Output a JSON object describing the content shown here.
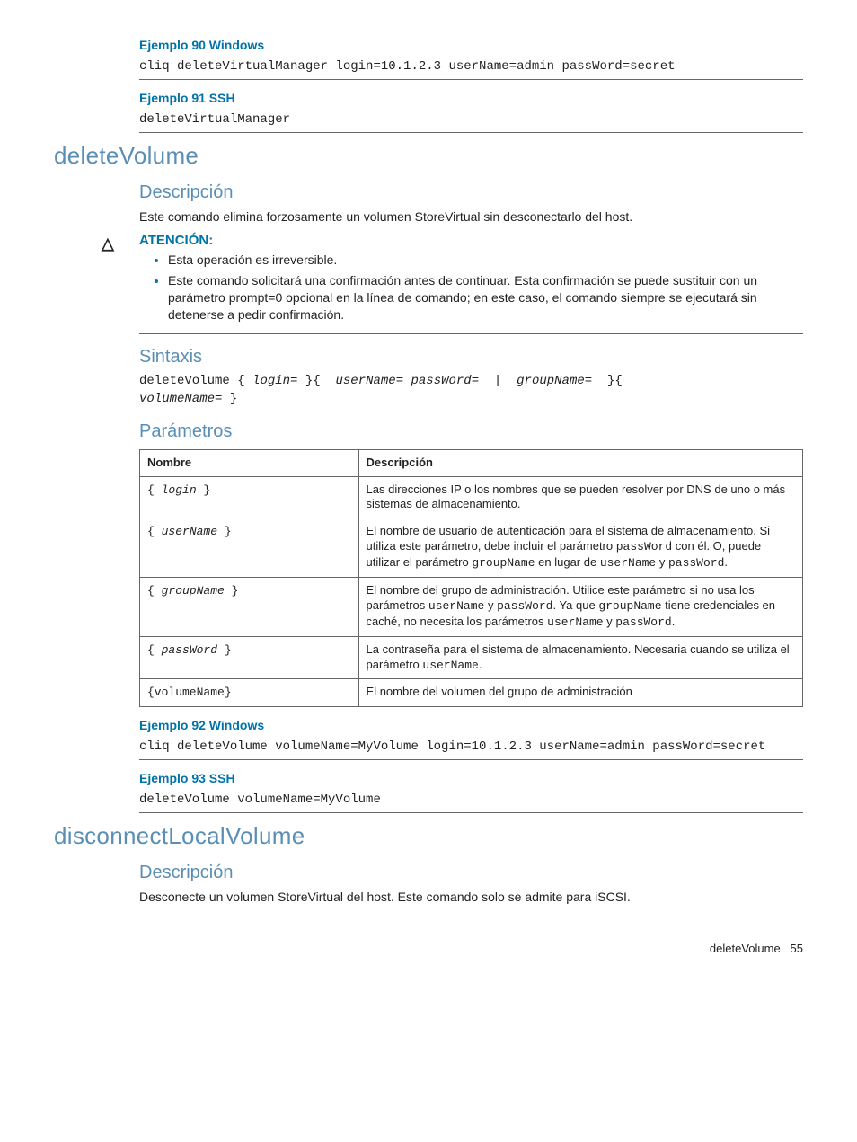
{
  "colors": {
    "heading": "#5a8fb5",
    "link_bold": "#0073a8",
    "text": "#222222",
    "rule": "#666666",
    "background": "#ffffff"
  },
  "typography": {
    "body_font": "Arial, Helvetica, sans-serif",
    "code_font": "Courier New, monospace",
    "body_size_pt": 10.5,
    "h1_size_pt": 20,
    "h2_size_pt": 15,
    "example_size_pt": 10.5
  },
  "ex90": {
    "title": "Ejemplo 90 Windows",
    "code": "cliq deleteVirtualManager login=10.1.2.3 userName=admin passWord=secret"
  },
  "ex91": {
    "title": "Ejemplo 91 SSH",
    "code": "deleteVirtualManager"
  },
  "deleteVolume": {
    "title": "deleteVolume",
    "descripcion": {
      "heading": "Descripción",
      "text": "Este comando elimina forzosamente un volumen StoreVirtual sin desconectarlo del host."
    },
    "atencion": {
      "heading": "ATENCIÓN:",
      "items": [
        "Esta operación es irreversible.",
        "Este comando solicitará una confirmación antes de continuar. Esta confirmación se puede sustituir con un parámetro prompt=0 opcional en la línea de comando; en este caso, el comando siempre se ejecutará sin detenerse a pedir confirmación."
      ]
    },
    "sintaxis": {
      "heading": "Sintaxis",
      "template_parts": {
        "cmd": "deleteVolume",
        "p1": "login=",
        "p2": "userName= passWord=",
        "p3": "groupName=",
        "p4": "volumeName="
      }
    },
    "parametros": {
      "heading": "Parámetros",
      "columns": [
        "Nombre",
        "Descripción"
      ],
      "rows": [
        {
          "name": "login",
          "name_style": "brace_italic",
          "desc_plain": "Las direcciones IP o los nombres que se pueden resolver por DNS de uno o más sistemas de almacenamiento."
        },
        {
          "name": "userName",
          "name_style": "brace_italic",
          "desc_html": "El nombre de usuario de autenticación para el sistema de almacenamiento. Si utiliza este parámetro, debe incluir el parámetro <span class=\"inlinec\">passWord</span> con él. O, puede utilizar el parámetro <span class=\"inlinec\">groupName</span> en lugar de <span class=\"inlinec\">userName</span> y <span class=\"inlinec\">passWord</span>."
        },
        {
          "name": "groupName",
          "name_style": "brace_italic",
          "desc_html": "El nombre del grupo de administración. Utilice este parámetro si no usa los parámetros <span class=\"inlinec\">userName</span> y <span class=\"inlinec\">passWord</span>. Ya que <span class=\"inlinec\">groupName</span> tiene credenciales en caché, no necesita los parámetros <span class=\"inlinec\">userName</span> y <span class=\"inlinec\">passWord</span>."
        },
        {
          "name": "passWord",
          "name_style": "brace_italic",
          "desc_html": "La contraseña para el sistema de almacenamiento. Necesaria cuando se utiliza el parámetro <span class=\"inlinec\">userName</span>."
        },
        {
          "name": "volumeName",
          "name_style": "brace_plain",
          "desc_plain": "El nombre del volumen del grupo de administración"
        }
      ]
    },
    "ex92": {
      "title": "Ejemplo 92 Windows",
      "code": "cliq deleteVolume volumeName=MyVolume login=10.1.2.3 userName=admin passWord=secret"
    },
    "ex93": {
      "title": "Ejemplo 93 SSH",
      "code": "deleteVolume volumeName=MyVolume"
    }
  },
  "disconnectLocalVolume": {
    "title": "disconnectLocalVolume",
    "descripcion": {
      "heading": "Descripción",
      "text": "Desconecte un volumen StoreVirtual del host. Este comando solo se admite para iSCSI."
    }
  },
  "footer": {
    "section": "deleteVolume",
    "page": "55"
  }
}
